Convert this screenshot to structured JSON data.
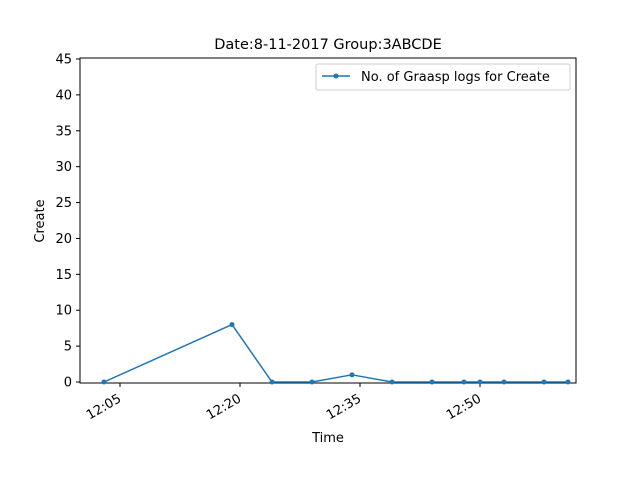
{
  "chart_data": {
    "type": "line",
    "title": "Date:8-11-2017  Group:3ABCDE",
    "xlabel": "Time",
    "ylabel": "Create",
    "ylim": [
      0,
      45
    ],
    "xlim": [
      "12:00",
      "12:62"
    ],
    "x_tick_labels": [
      "12:05",
      "12:20",
      "12:35",
      "12:50"
    ],
    "y_tick_labels": [
      "0",
      "5",
      "10",
      "15",
      "20",
      "25",
      "30",
      "35",
      "40",
      "45"
    ],
    "legend_position": "top-right",
    "grid": false,
    "color": "#1f77b4",
    "series": [
      {
        "name": "No. of Graasp logs for Create",
        "x": [
          "12:03",
          "12:19",
          "12:24",
          "12:29",
          "12:34",
          "12:39",
          "12:44",
          "12:48",
          "12:50",
          "12:53",
          "12:58",
          "13:01"
        ],
        "values": [
          0,
          8,
          0,
          0,
          1,
          0,
          0,
          0,
          0,
          0,
          0,
          0
        ]
      }
    ]
  }
}
